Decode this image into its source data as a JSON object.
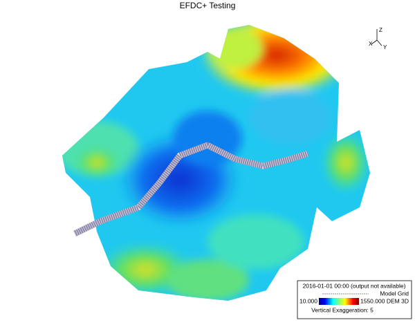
{
  "header": {
    "title": "EFDC+ Testing"
  },
  "axes": {
    "z": "Z",
    "x": "X",
    "y": "Y"
  },
  "legend": {
    "timestamp": "2016-01-01 00:00 (output not available)",
    "grid_label": "Model Grid",
    "min_label": "10.000",
    "max_label": "1550.000",
    "dem_label": "DEM 3D",
    "exaggeration": "Vertical Exaggeration: 5"
  }
}
